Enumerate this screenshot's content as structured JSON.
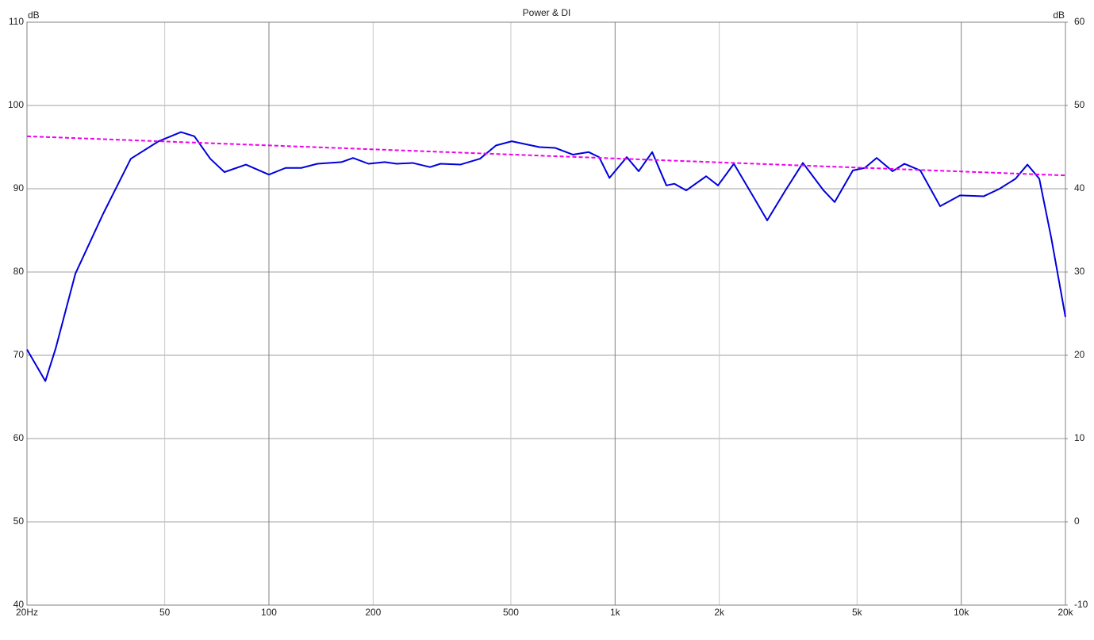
{
  "chart_data": {
    "type": "line",
    "title": "Power & DI",
    "y_label": "dB",
    "y2_label": "dB",
    "xscale": "log",
    "grid": true,
    "xlim": [
      20,
      20000
    ],
    "xticks": [
      {
        "value": 20,
        "label": "20Hz"
      },
      50,
      100,
      200,
      500,
      {
        "value": 1000,
        "label": "1k"
      },
      {
        "value": 2000,
        "label": "2k"
      },
      {
        "value": 5000,
        "label": "5k"
      },
      {
        "value": 10000,
        "label": "10k"
      },
      {
        "value": 20000,
        "label": "20k"
      }
    ],
    "ylim": [
      40,
      110
    ],
    "yticks": [
      40,
      50,
      60,
      70,
      80,
      90,
      100,
      110
    ],
    "y2lim": [
      -10,
      60
    ],
    "y2ticks": [
      -10,
      0,
      10,
      20,
      30,
      40,
      50,
      60
    ],
    "series": [
      {
        "color": "#0000dd",
        "dash": false,
        "x": [
          20,
          22.6,
          24.2,
          27.6,
          33.2,
          39.9,
          48,
          55.7,
          60.9,
          67.7,
          74.4,
          85.8,
          100,
          111.7,
          124,
          138,
          162,
          175,
          194,
          216,
          234,
          260,
          292,
          313,
          357,
          407,
          453,
          503,
          559,
          605,
          672,
          755,
          839,
          899,
          963,
          1081,
          1170,
          1280,
          1407,
          1484,
          1606,
          1833,
          1983,
          2204,
          2488,
          2751,
          3105,
          3488,
          4002,
          4309,
          4864,
          5264,
          5698,
          6333,
          6852,
          7616,
          8691,
          9918,
          11620,
          12910,
          14350,
          15530,
          16810,
          18200,
          20000
        ],
        "values": [
          70.7,
          66.9,
          70.8,
          79.8,
          87.0,
          93.6,
          95.7,
          96.8,
          96.3,
          93.6,
          92.0,
          92.9,
          91.7,
          92.5,
          92.5,
          93.0,
          93.2,
          93.7,
          93.0,
          93.2,
          93.0,
          93.1,
          92.6,
          93.0,
          92.9,
          93.6,
          95.2,
          95.7,
          95.3,
          95.0,
          94.9,
          94.1,
          94.4,
          93.8,
          91.3,
          93.8,
          92.1,
          94.4,
          90.4,
          90.6,
          89.8,
          91.5,
          90.4,
          93.0,
          89.3,
          86.2,
          89.8,
          93.1,
          89.8,
          88.4,
          92.2,
          92.5,
          93.7,
          92.1,
          93.0,
          92.2,
          87.9,
          89.2,
          89.1,
          90.0,
          91.2,
          92.9,
          91.2,
          84.1,
          74.6
        ]
      },
      {
        "color": "#ee00ee",
        "dash": true,
        "x": [
          20,
          20000
        ],
        "values": [
          96.3,
          91.6
        ]
      }
    ]
  }
}
